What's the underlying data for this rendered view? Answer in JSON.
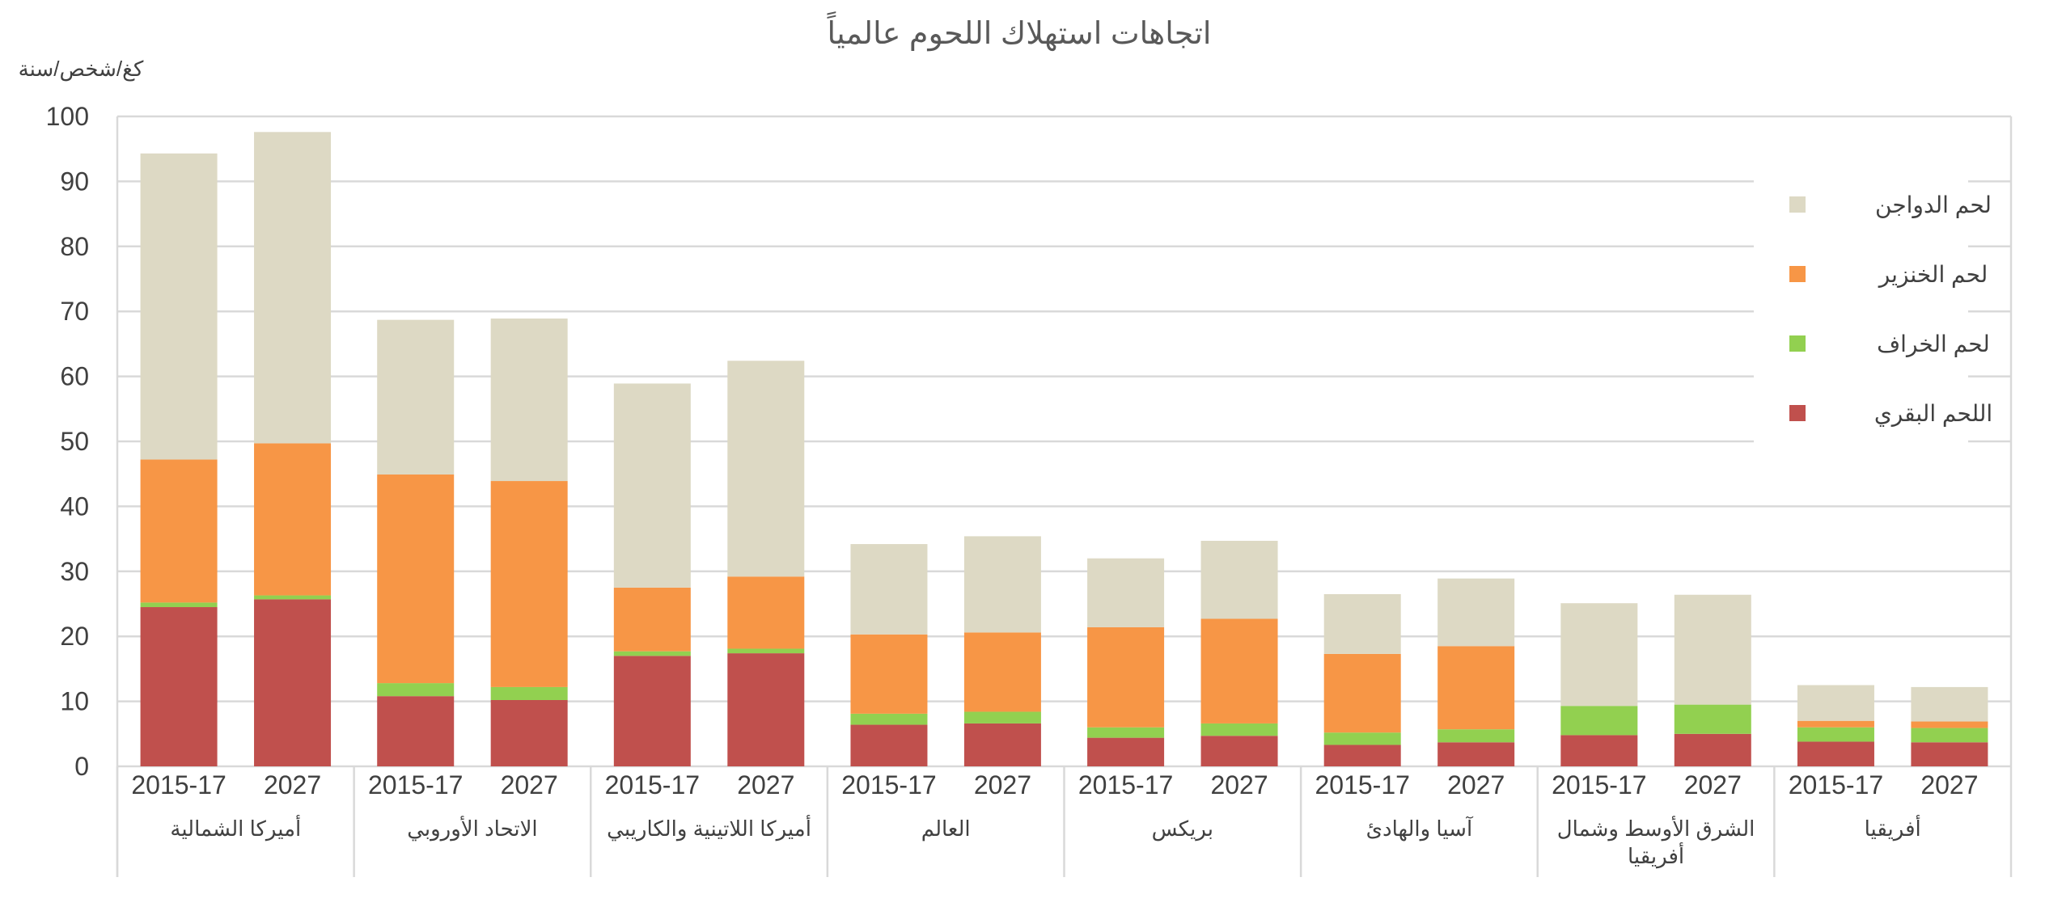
{
  "chart_data": {
    "type": "bar",
    "stacked": true,
    "title": "اتجاهات استهلاك اللحوم عالمياً",
    "ylabel": "كغ/شخص/سنة",
    "ylim": [
      0,
      100
    ],
    "yticks": [
      0,
      10,
      20,
      30,
      40,
      50,
      60,
      70,
      80,
      90,
      100
    ],
    "grid": true,
    "legend_position": "top-right",
    "groups": [
      {
        "name": "أميركا الشمالية",
        "lines": [
          "أميركا الشمالية"
        ]
      },
      {
        "name": "الاتحاد الأوروبي",
        "lines": [
          "الاتحاد الأوروبي"
        ]
      },
      {
        "name": "أميركا اللاتينية والكاريبي",
        "lines": [
          "أميركا اللاتينية والكاريبي"
        ]
      },
      {
        "name": "العالم",
        "lines": [
          "العالم"
        ]
      },
      {
        "name": "بريكس",
        "lines": [
          "بريكس"
        ]
      },
      {
        "name": "آسيا والهادئ",
        "lines": [
          "آسيا والهادئ"
        ]
      },
      {
        "name": "الشرق الأوسط وشمال أفريقيا",
        "lines": [
          "الشرق الأوسط وشمال",
          "أفريقيا"
        ]
      },
      {
        "name": "أفريقيا",
        "lines": [
          "أفريقيا"
        ]
      }
    ],
    "categories": [
      "2015-17",
      "2027",
      "2015-17",
      "2027",
      "2015-17",
      "2027",
      "2015-17",
      "2027",
      "2015-17",
      "2027",
      "2015-17",
      "2027",
      "2015-17",
      "2027",
      "2015-17",
      "2027"
    ],
    "series": [
      {
        "name": "اللحم البقري",
        "color": "#c0504d",
        "values": [
          24.5,
          25.7,
          10.8,
          10.2,
          17.0,
          17.4,
          6.4,
          6.6,
          4.4,
          4.7,
          3.3,
          3.7,
          4.8,
          5.0,
          3.8,
          3.7
        ]
      },
      {
        "name": "لحم الخراف",
        "color": "#92d050",
        "values": [
          0.7,
          0.6,
          2.0,
          2.0,
          0.7,
          0.7,
          1.7,
          1.8,
          1.6,
          1.9,
          1.9,
          2.0,
          4.5,
          4.5,
          2.2,
          2.2
        ]
      },
      {
        "name": "لحم الخنزير",
        "color": "#f79646",
        "values": [
          22.0,
          23.4,
          32.1,
          31.7,
          9.8,
          11.1,
          12.2,
          12.2,
          15.4,
          16.1,
          12.1,
          12.8,
          0.0,
          0.0,
          1.0,
          1.0
        ]
      },
      {
        "name": "لحم الدواجن",
        "color": "#ddd9c4",
        "values": [
          47.1,
          47.9,
          23.8,
          25.0,
          31.4,
          33.2,
          13.9,
          14.8,
          10.6,
          12.0,
          9.2,
          10.4,
          15.8,
          16.9,
          5.5,
          5.3
        ]
      }
    ],
    "legend_order": [
      "لحم الدواجن",
      "لحم الخنزير",
      "لحم الخراف",
      "اللحم البقري"
    ],
    "colors": {
      "grid": "#d9d9d9",
      "axis": "#d9d9d9",
      "text": "#404040"
    }
  }
}
